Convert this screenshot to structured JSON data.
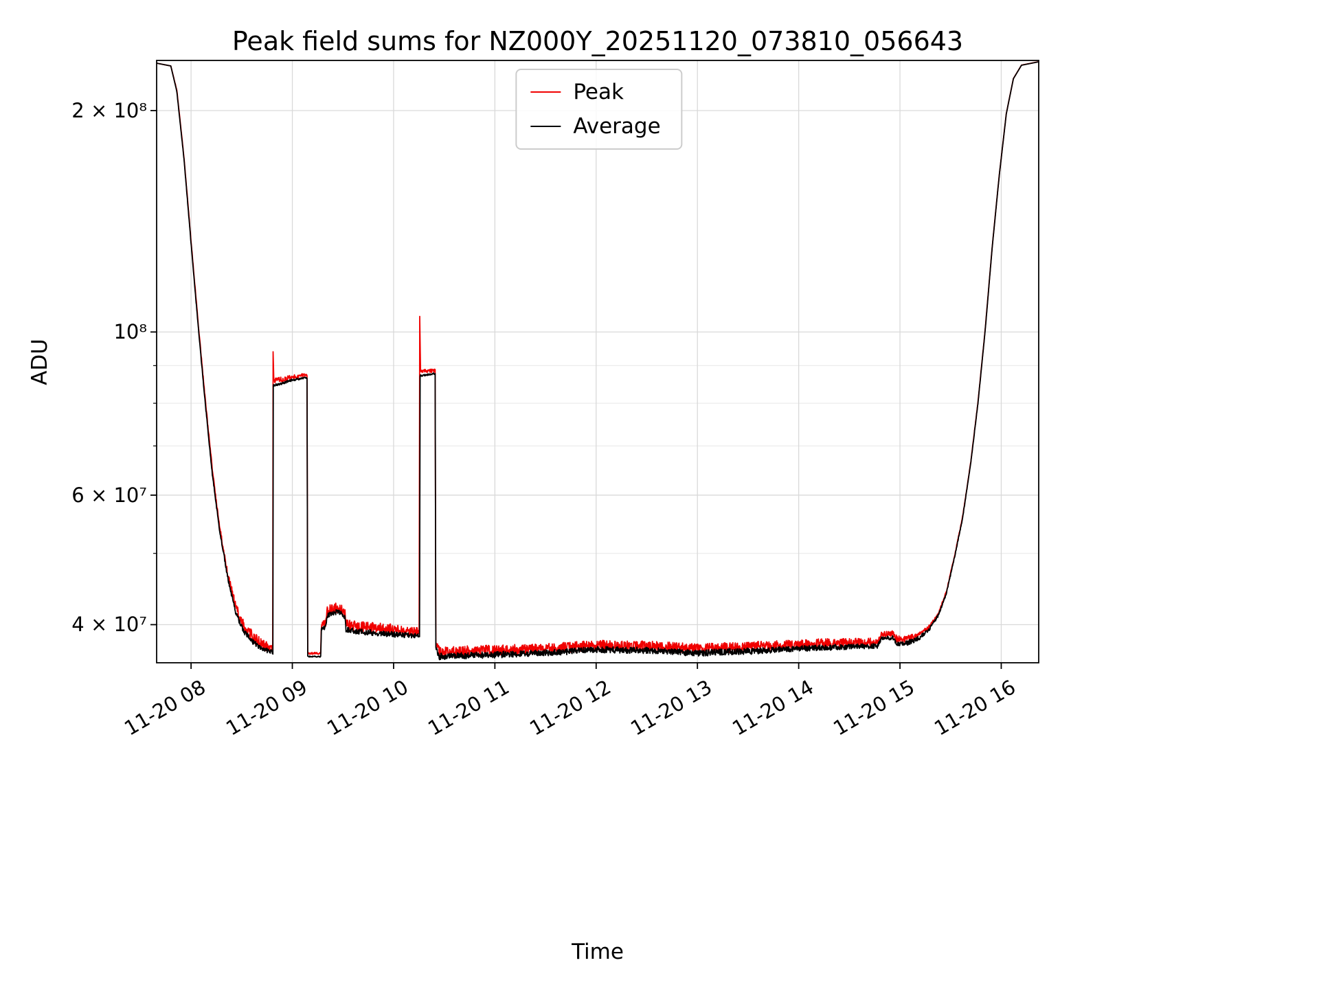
{
  "chart_data": {
    "type": "line",
    "title": "Peak field sums for NZ000Y_20251120_073810_056643",
    "xlabel": "Time",
    "ylabel": "ADU",
    "yscale": "log",
    "grid": true,
    "legend_position": "upper center",
    "xlim": [
      7.66,
      16.37
    ],
    "ylim": [
      35500000.0,
      234000000.0
    ],
    "x_encoding": "hour of day on 2025-11-20",
    "xticks": {
      "values": [
        8,
        9,
        10,
        11,
        12,
        13,
        14,
        15,
        16
      ],
      "labels": [
        "11-20 08",
        "11-20 09",
        "11-20 10",
        "11-20 11",
        "11-20 12",
        "11-20 13",
        "11-20 14",
        "11-20 15",
        "11-20 16"
      ]
    },
    "yticks": {
      "values": [
        40000000.0,
        60000000.0,
        100000000.0,
        200000000.0
      ],
      "labels": [
        "4 × 10⁷",
        "6 × 10⁷",
        "10⁸",
        "2 × 10⁸"
      ]
    },
    "yticks_minor": [
      50000000.0,
      70000000.0,
      80000000.0,
      90000000.0
    ],
    "style": {
      "background": "#ffffff",
      "spine_color": "#000000",
      "grid_color": "#d9d9d9",
      "minor_grid_color": "#ececec"
    },
    "series": [
      {
        "name": "Peak",
        "color": "#f00000",
        "points_format": [
          "time_hours",
          "adu_value",
          "relative_noise_amplitude"
        ],
        "points": [
          [
            7.66,
            232000000.0,
            0
          ],
          [
            7.8,
            230000000.0,
            0
          ],
          [
            7.86,
            213000000.0,
            0.002
          ],
          [
            7.93,
            173000000.0,
            0.003
          ],
          [
            8.0,
            133000000.0,
            0.003
          ],
          [
            8.07,
            103000000.0,
            0.004
          ],
          [
            8.14,
            81000000.0,
            0.005
          ],
          [
            8.21,
            65000000.0,
            0.006
          ],
          [
            8.28,
            54500000.0,
            0.008
          ],
          [
            8.36,
            47000000.0,
            0.01
          ],
          [
            8.44,
            42200000.0,
            0.018
          ],
          [
            8.52,
            39800000.0,
            0.022
          ],
          [
            8.6,
            38500000.0,
            0.022
          ],
          [
            8.7,
            37600000.0,
            0.018
          ],
          [
            8.8,
            37100000.0,
            0.012
          ],
          [
            8.806,
            37000000.0,
            0
          ],
          [
            8.81,
            94000000.0,
            0
          ],
          [
            8.817,
            85800000.0,
            0.008
          ],
          [
            8.9,
            86200000.0,
            0.008
          ],
          [
            9.0,
            86800000.0,
            0.007
          ],
          [
            9.1,
            87300000.0,
            0.006
          ],
          [
            9.145,
            87300000.0,
            0.003
          ],
          [
            9.152,
            36600000.0,
            0.003
          ],
          [
            9.28,
            36500000.0,
            0.004
          ],
          [
            9.287,
            40000000.0,
            0.012
          ],
          [
            9.33,
            40200000.0,
            0.013
          ],
          [
            9.345,
            41800000.0,
            0.016
          ],
          [
            9.46,
            42300000.0,
            0.016
          ],
          [
            9.52,
            41500000.0,
            0.014
          ],
          [
            9.53,
            40000000.0,
            0.016
          ],
          [
            9.6,
            39800000.0,
            0.017
          ],
          [
            9.8,
            39600000.0,
            0.017
          ],
          [
            10.0,
            39400000.0,
            0.017
          ],
          [
            10.24,
            39100000.0,
            0.014
          ],
          [
            10.252,
            39000000.0,
            0
          ],
          [
            10.258,
            105000000.0,
            0
          ],
          [
            10.266,
            88400000.0,
            0.006
          ],
          [
            10.41,
            88600000.0,
            0.005
          ],
          [
            10.417,
            37800000.0,
            0.006
          ],
          [
            10.45,
            36700000.0,
            0.017
          ],
          [
            10.7,
            36800000.0,
            0.017
          ],
          [
            11.0,
            36900000.0,
            0.017
          ],
          [
            11.5,
            37100000.0,
            0.016
          ],
          [
            12.0,
            37500000.0,
            0.016
          ],
          [
            12.5,
            37400000.0,
            0.016
          ],
          [
            13.0,
            37100000.0,
            0.016
          ],
          [
            13.5,
            37300000.0,
            0.016
          ],
          [
            14.0,
            37600000.0,
            0.015
          ],
          [
            14.4,
            37800000.0,
            0.015
          ],
          [
            14.78,
            37900000.0,
            0.012
          ],
          [
            14.82,
            38800000.0,
            0.009
          ],
          [
            14.93,
            38900000.0,
            0.009
          ],
          [
            14.97,
            38200000.0,
            0.011
          ],
          [
            15.08,
            38300000.0,
            0.01
          ],
          [
            15.18,
            38700000.0,
            0.008
          ],
          [
            15.28,
            39600000.0,
            0.006
          ],
          [
            15.38,
            41400000.0,
            0.005
          ],
          [
            15.46,
            44400000.0,
            0.004
          ],
          [
            15.54,
            49700000.0,
            0.003
          ],
          [
            15.62,
            56200000.0,
            0.003
          ],
          [
            15.7,
            66700000.0,
            0.002
          ],
          [
            15.77,
            80200000.0,
            0.002
          ],
          [
            15.84,
            100300000.0,
            0.002
          ],
          [
            15.91,
            130200000.0,
            0.001
          ],
          [
            15.98,
            163200000.0,
            0.001
          ],
          [
            16.05,
            198200000.0,
            0.001
          ],
          [
            16.12,
            221100000.0,
            0
          ],
          [
            16.2,
            230600000.0,
            0
          ],
          [
            16.37,
            233100000.0,
            0
          ]
        ]
      },
      {
        "name": "Average",
        "color": "#000000",
        "points_format": [
          "time_hours",
          "adu_value",
          "relative_noise_amplitude"
        ],
        "points": [
          [
            7.66,
            232000000.0,
            0
          ],
          [
            7.8,
            230000000.0,
            0
          ],
          [
            7.86,
            212000000.0,
            0.002
          ],
          [
            7.93,
            172000000.0,
            0.002
          ],
          [
            8.0,
            132000000.0,
            0.003
          ],
          [
            8.07,
            102000000.0,
            0.003
          ],
          [
            8.14,
            80000000.0,
            0.004
          ],
          [
            8.21,
            64000000.0,
            0.004
          ],
          [
            8.28,
            54000000.0,
            0.005
          ],
          [
            8.36,
            46500000.0,
            0.006
          ],
          [
            8.44,
            41500000.0,
            0.007
          ],
          [
            8.52,
            39200000.0,
            0.008
          ],
          [
            8.6,
            38000000.0,
            0.008
          ],
          [
            8.7,
            37100000.0,
            0.008
          ],
          [
            8.8,
            36700000.0,
            0.007
          ],
          [
            8.808,
            36500000.0,
            0.002
          ],
          [
            8.812,
            84500000.0,
            0.004
          ],
          [
            8.9,
            85200000.0,
            0.004
          ],
          [
            9.0,
            86000000.0,
            0.004
          ],
          [
            9.1,
            86600000.0,
            0.003
          ],
          [
            9.145,
            86600000.0,
            0.002
          ],
          [
            9.152,
            36200000.0,
            0.002
          ],
          [
            9.28,
            36200000.0,
            0.002
          ],
          [
            9.287,
            39500000.0,
            0.006
          ],
          [
            9.33,
            39700000.0,
            0.007
          ],
          [
            9.345,
            41200000.0,
            0.008
          ],
          [
            9.46,
            41700000.0,
            0.008
          ],
          [
            9.52,
            41000000.0,
            0.008
          ],
          [
            9.53,
            39400000.0,
            0.008
          ],
          [
            9.6,
            39200000.0,
            0.009
          ],
          [
            9.8,
            39000000.0,
            0.009
          ],
          [
            10.0,
            38800000.0,
            0.009
          ],
          [
            10.24,
            38600000.0,
            0.008
          ],
          [
            10.256,
            38500000.0,
            0.002
          ],
          [
            10.262,
            87200000.0,
            0.003
          ],
          [
            10.41,
            87800000.0,
            0.003
          ],
          [
            10.417,
            37200000.0,
            0.006
          ],
          [
            10.45,
            36200000.0,
            0.01
          ],
          [
            10.7,
            36300000.0,
            0.01
          ],
          [
            11.0,
            36400000.0,
            0.01
          ],
          [
            11.5,
            36600000.0,
            0.01
          ],
          [
            12.0,
            37000000.0,
            0.01
          ],
          [
            12.5,
            36900000.0,
            0.01
          ],
          [
            13.0,
            36600000.0,
            0.01
          ],
          [
            13.5,
            36800000.0,
            0.01
          ],
          [
            14.0,
            37100000.0,
            0.009
          ],
          [
            14.4,
            37300000.0,
            0.009
          ],
          [
            14.78,
            37400000.0,
            0.008
          ],
          [
            14.82,
            38300000.0,
            0.006
          ],
          [
            14.93,
            38400000.0,
            0.006
          ],
          [
            14.97,
            37700000.0,
            0.007
          ],
          [
            15.08,
            37800000.0,
            0.008
          ],
          [
            15.18,
            38300000.0,
            0.007
          ],
          [
            15.28,
            39300000.0,
            0.006
          ],
          [
            15.38,
            41200000.0,
            0.005
          ],
          [
            15.46,
            44200000.0,
            0.004
          ],
          [
            15.54,
            49500000.0,
            0.003
          ],
          [
            15.62,
            56000000.0,
            0.003
          ],
          [
            15.7,
            66500000.0,
            0.002
          ],
          [
            15.77,
            80000000.0,
            0.002
          ],
          [
            15.84,
            100000000.0,
            0.002
          ],
          [
            15.91,
            130000000.0,
            0.001
          ],
          [
            15.98,
            163000000.0,
            0.001
          ],
          [
            16.05,
            198000000.0,
            0.001
          ],
          [
            16.12,
            221000000.0,
            0
          ],
          [
            16.2,
            230500000.0,
            0
          ],
          [
            16.37,
            233000000.0,
            0
          ]
        ]
      }
    ]
  }
}
